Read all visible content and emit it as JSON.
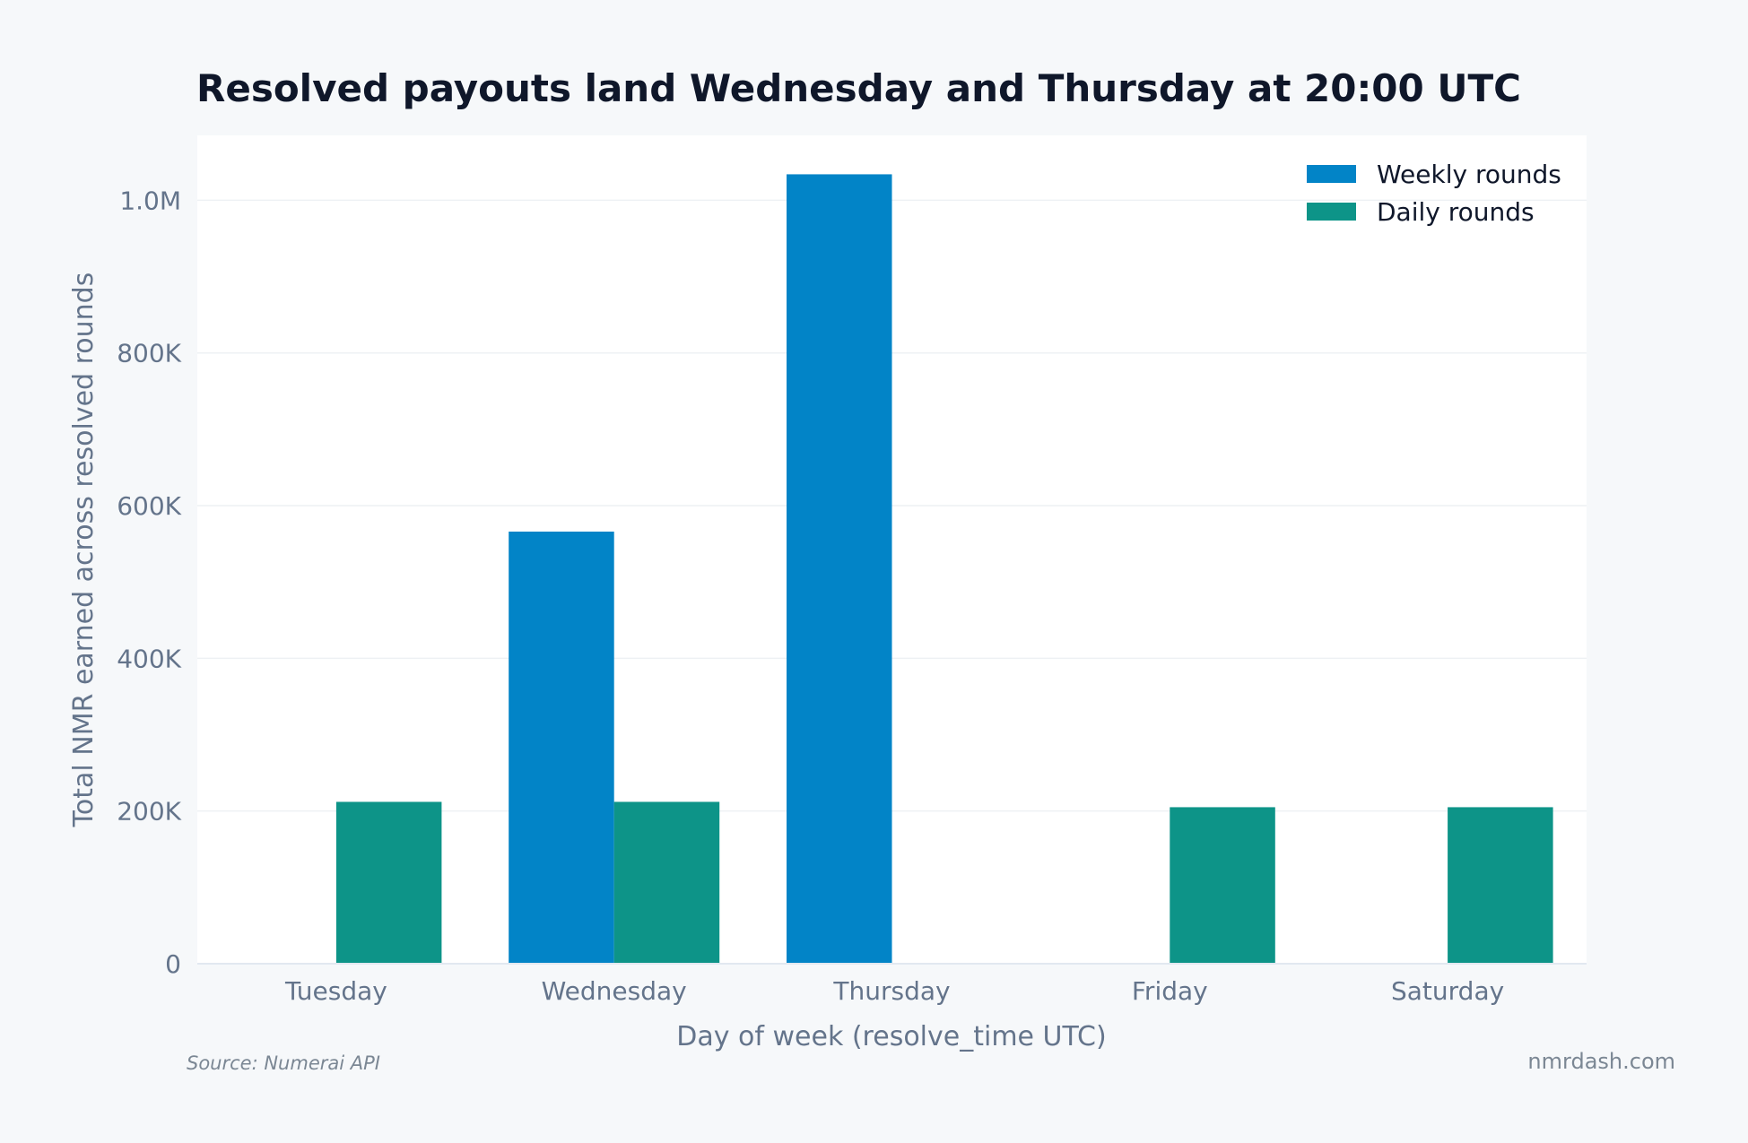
{
  "chart_data": {
    "type": "bar",
    "title": "Resolved payouts land Wednesday and Thursday at 20:00 UTC",
    "xlabel": "Day of week (resolve_time UTC)",
    "ylabel": "Total NMR earned across resolved rounds",
    "categories": [
      "Tuesday",
      "Wednesday",
      "Thursday",
      "Friday",
      "Saturday"
    ],
    "series": [
      {
        "name": "Weekly rounds",
        "color": "#0284c7",
        "values": [
          0,
          566000,
          1034000,
          0,
          0
        ]
      },
      {
        "name": "Daily rounds",
        "color": "#0d9488",
        "values": [
          212000,
          212000,
          1000,
          205000,
          205000
        ]
      }
    ],
    "ylim": [
      0,
      1085000
    ],
    "yticks": [
      {
        "value": 0,
        "label": "0"
      },
      {
        "value": 200000,
        "label": "200K"
      },
      {
        "value": 400000,
        "label": "400K"
      },
      {
        "value": 600000,
        "label": "600K"
      },
      {
        "value": 800000,
        "label": "800K"
      },
      {
        "value": 1000000,
        "label": "1.0M"
      }
    ],
    "grid": true,
    "legend_position": "top-right",
    "source": "Source: Numerai API",
    "brand": "nmrdash.com"
  }
}
